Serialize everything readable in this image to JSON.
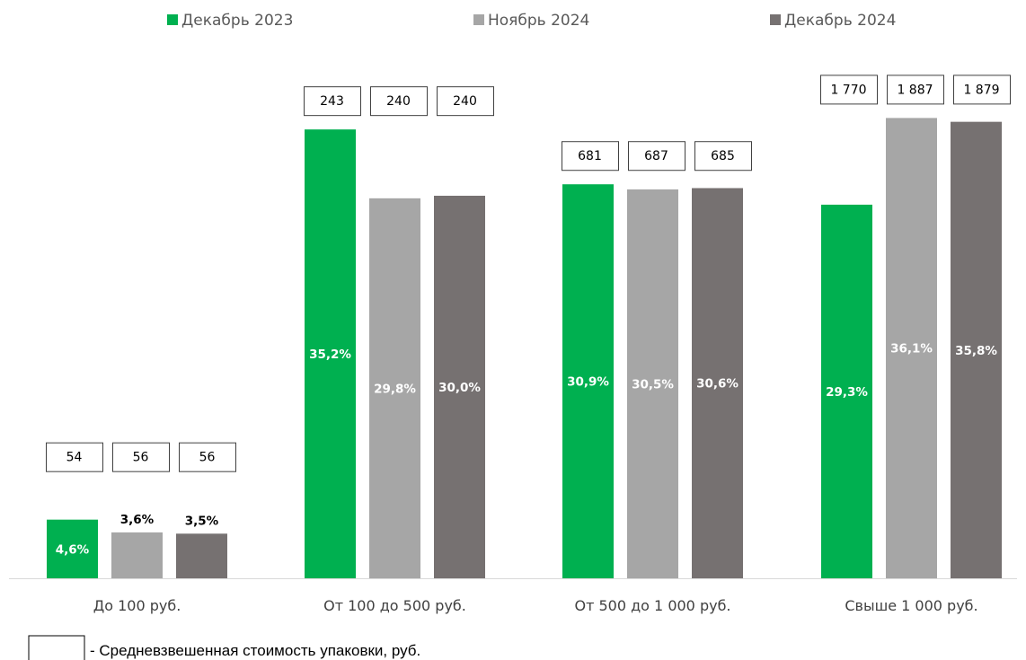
{
  "chart_data": {
    "type": "bar",
    "categories": [
      "До 100 руб.",
      "От 100 до 500 руб.",
      "От 500 до 1 000 руб.",
      "Свыше 1 000 руб."
    ],
    "series": [
      {
        "name": "Декабрь 2023",
        "color": "#00b050",
        "values": [
          4.6,
          35.2,
          30.9,
          29.3
        ],
        "labels": [
          "4,6%",
          "35,2%",
          "30,9%",
          "29,3%"
        ],
        "prices": [
          "54",
          "243",
          "681",
          "1 770"
        ]
      },
      {
        "name": "Ноябрь 2024",
        "color": "#a6a6a6",
        "values": [
          3.6,
          29.8,
          30.5,
          36.1
        ],
        "labels": [
          "3,6%",
          "29,8%",
          "30,5%",
          "36,1%"
        ],
        "prices": [
          "56",
          "240",
          "687",
          "1 887"
        ]
      },
      {
        "name": "Декабрь 2024",
        "color": "#767171",
        "values": [
          3.5,
          30.0,
          30.6,
          35.8
        ],
        "labels": [
          "3,5%",
          "30,0%",
          "30,6%",
          "35,8%"
        ],
        "prices": [
          "56",
          "240",
          "685",
          "1 879"
        ]
      }
    ],
    "ylim": [
      0,
      40
    ],
    "grid": false,
    "legend": "top"
  },
  "note": "- Средневзвешенная стоимость упаковки, руб."
}
